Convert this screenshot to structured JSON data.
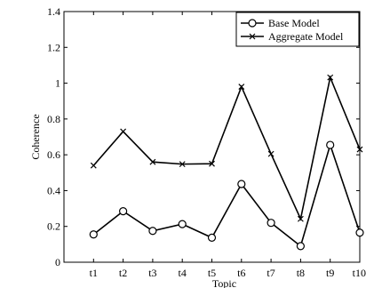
{
  "chart_data": {
    "type": "line",
    "xlabel": "Topic",
    "ylabel": "Coherence",
    "categories": [
      "t1",
      "t2",
      "t3",
      "t4",
      "t5",
      "t6",
      "t7",
      "t8",
      "t9",
      "t10"
    ],
    "ylim": [
      0,
      1.4
    ],
    "yticks": [
      "0",
      "0.2",
      "0.4",
      "0.6",
      "0.8",
      "1",
      "1.2",
      "1.4"
    ],
    "ytick_values": [
      0,
      0.2,
      0.4,
      0.6,
      0.8,
      1.0,
      1.2,
      1.4
    ],
    "grid": false,
    "legend_position": "top-right",
    "series": [
      {
        "name": "Base Model",
        "marker": "circle",
        "color": "#000000",
        "values": [
          0.155,
          0.285,
          0.175,
          0.213,
          0.137,
          0.437,
          0.22,
          0.09,
          0.655,
          0.165
        ]
      },
      {
        "name": "Aggregate Model",
        "marker": "x",
        "color": "#000000",
        "values": [
          0.54,
          0.73,
          0.56,
          0.548,
          0.55,
          0.98,
          0.605,
          0.242,
          1.032,
          0.63
        ]
      }
    ]
  }
}
